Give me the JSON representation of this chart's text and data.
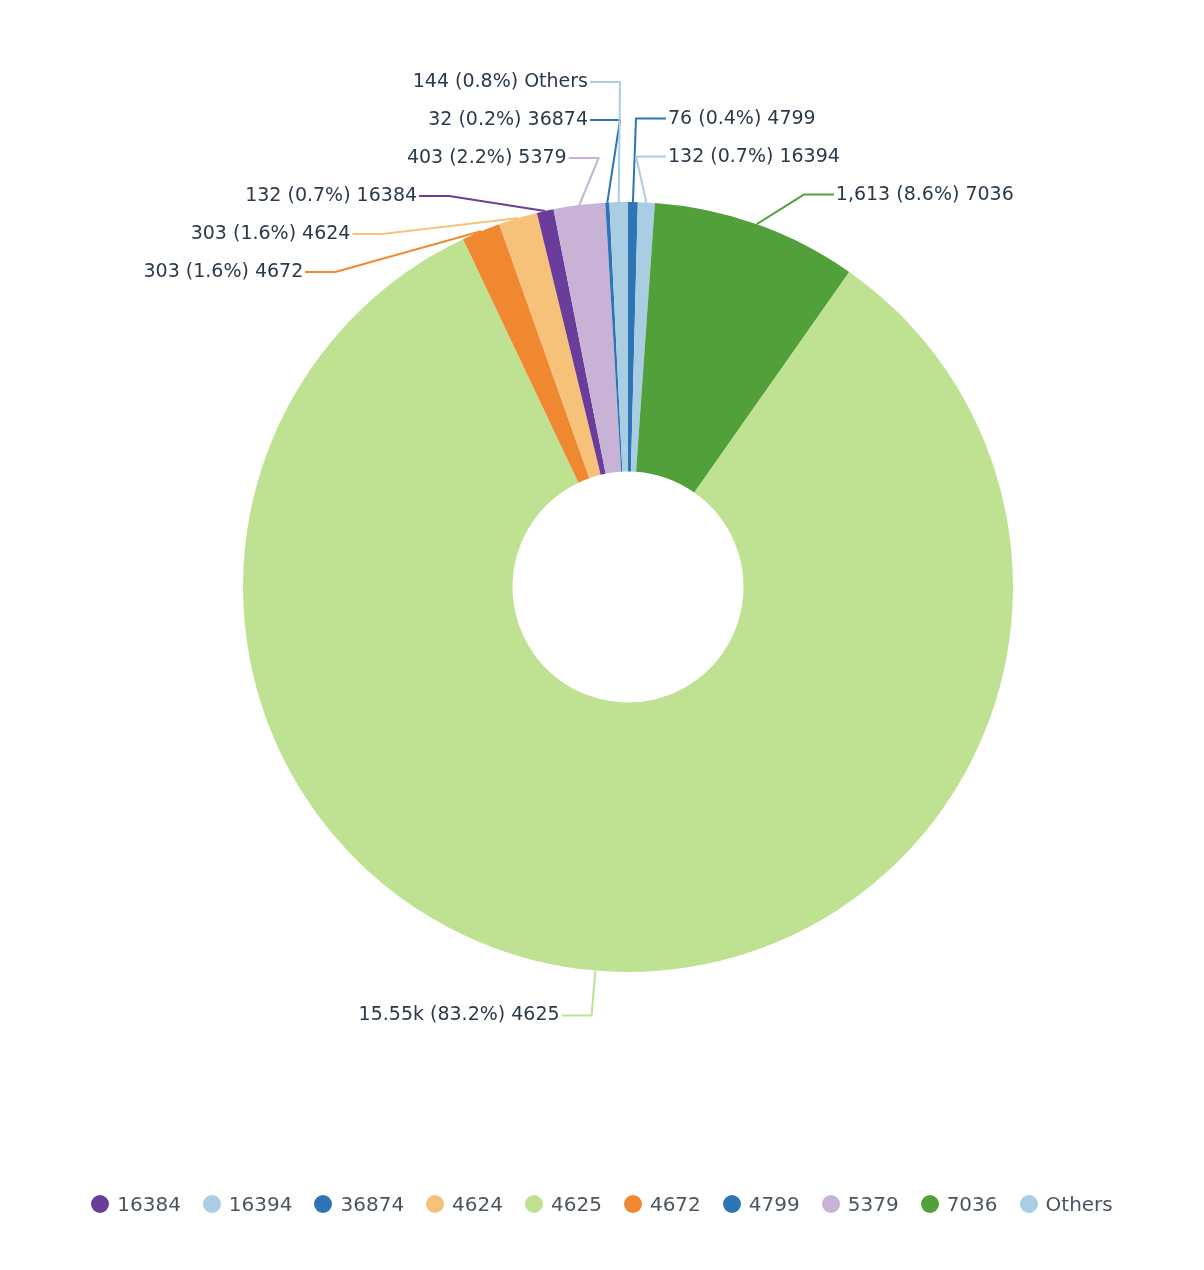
{
  "chart_data": {
    "type": "donut",
    "categories": [
      "4799",
      "16394",
      "7036",
      "4625",
      "4672",
      "4624",
      "16384",
      "5379",
      "36874",
      "Others"
    ],
    "values": [
      76,
      132,
      1613,
      15550,
      303,
      303,
      132,
      403,
      32,
      144
    ],
    "value_labels": [
      "76 (0.4%) 4799",
      "132 (0.7%) 16394",
      "1,613 (8.6%) 7036",
      "15.55k (83.2%) 4625",
      "303 (1.6%) 4672",
      "303 (1.6%) 4624",
      "132 (0.7%) 16384",
      "403 (2.2%) 5379",
      "32 (0.2%) 36874",
      "144 (0.8%) Others"
    ],
    "colors": [
      "#2e75b6",
      "#a9cde3",
      "#52a03a",
      "#bfe192",
      "#ef8830",
      "#f6c27a",
      "#6a3d9a",
      "#c8b3d7",
      "#2e75b6",
      "#a9cde3"
    ],
    "legend": "bottom"
  }
}
